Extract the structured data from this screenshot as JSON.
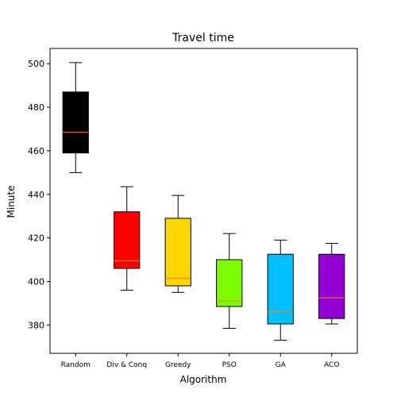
{
  "chart_data": {
    "type": "box",
    "title": "Travel time",
    "xlabel": "Algorithm",
    "ylabel": "Minute",
    "ylim": [
      367,
      507
    ],
    "yticks": [
      380,
      400,
      420,
      440,
      460,
      480,
      500
    ],
    "grid": false,
    "categories": [
      "Random",
      "Div & Conq",
      "Greedy",
      "PSO",
      "GA",
      "ACO"
    ],
    "boxes": [
      {
        "category": "Random",
        "whisker_low": 450,
        "q1": 459,
        "median": 468.5,
        "q3": 487,
        "whisker_high": 500.5,
        "color": "#000000"
      },
      {
        "category": "Div & Conq",
        "whisker_low": 396,
        "q1": 406,
        "median": 409.5,
        "q3": 432,
        "whisker_high": 443.5,
        "color": "#ff0000"
      },
      {
        "category": "Greedy",
        "whisker_low": 395,
        "q1": 398,
        "median": 401.5,
        "q3": 429,
        "whisker_high": 439.5,
        "color": "#ffd700"
      },
      {
        "category": "PSO",
        "whisker_low": 378.5,
        "q1": 388.5,
        "median": 391,
        "q3": 410,
        "whisker_high": 422,
        "color": "#7cfc00"
      },
      {
        "category": "GA",
        "whisker_low": 373,
        "q1": 380.5,
        "median": 386,
        "q3": 412.5,
        "whisker_high": 419,
        "color": "#00bfff"
      },
      {
        "category": "ACO",
        "whisker_low": 380.5,
        "q1": 383,
        "median": 392.5,
        "q3": 412.5,
        "whisker_high": 417.5,
        "color": "#9400d3"
      }
    ],
    "median_color": "#ff7f0e"
  }
}
